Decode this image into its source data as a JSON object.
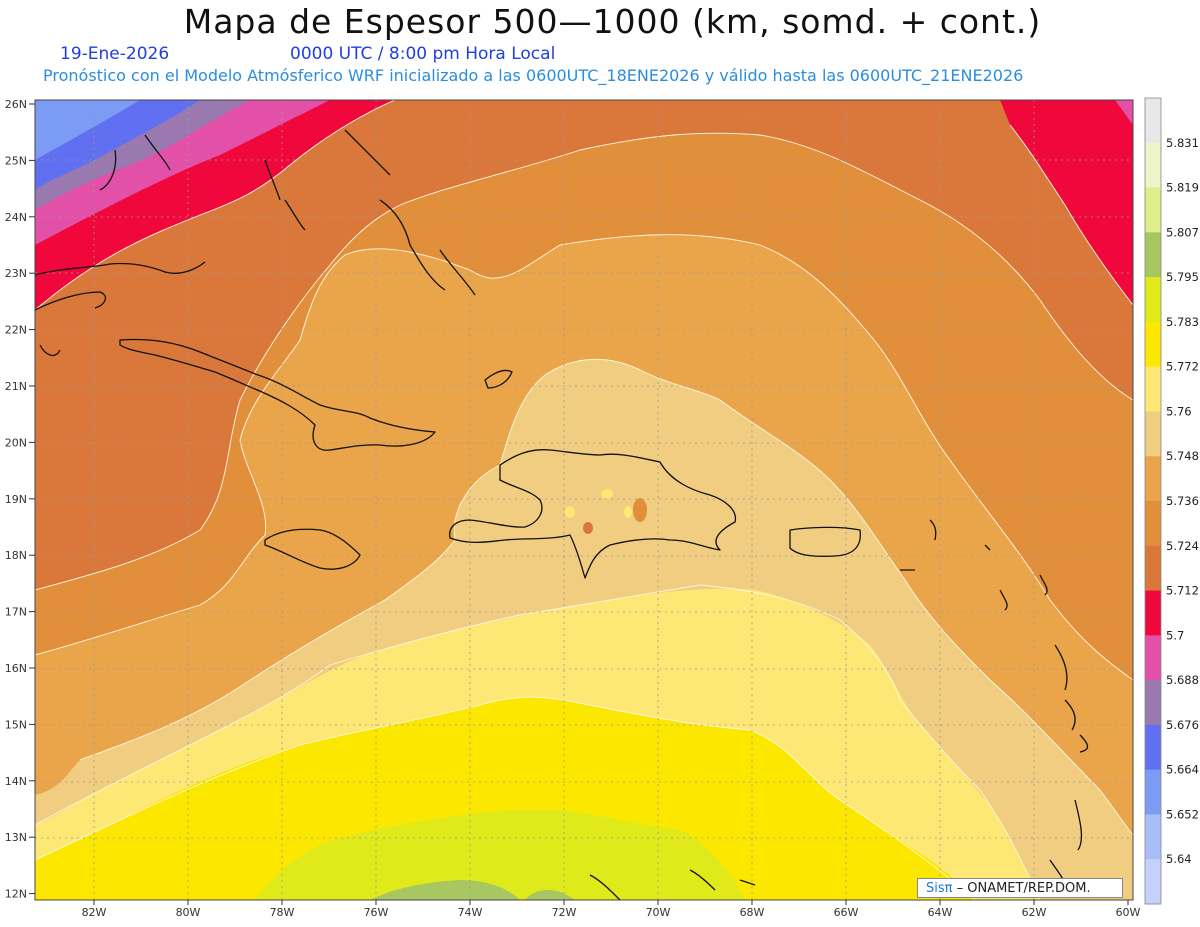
{
  "title": "Mapa de Espesor 500—1000 (km, somd. + cont.)",
  "date": "19-Ene-2026",
  "time_label": "0000 UTC / 8:00 pm Hora Local",
  "subtitle": "Pronóstico con el Modelo Atmósferico WRF inicializado a las 0600UTC_18ENE2026 y válido hasta las  0600UTC_21ENE2026",
  "credit": {
    "brand": "Sisπ",
    "text": "– ONAMET/REP.DOM."
  },
  "lat_labels": [
    "26N",
    "25N",
    "24N",
    "23N",
    "22N",
    "21N",
    "20N",
    "19N",
    "18N",
    "17N",
    "16N",
    "15N",
    "14N",
    "13N",
    "12N"
  ],
  "lon_labels": [
    "82W",
    "80W",
    "78W",
    "76W",
    "74W",
    "72W",
    "70W",
    "68W",
    "66W",
    "64W",
    "62W",
    "60W"
  ],
  "colorbar_labels": [
    "5.831",
    "5.819",
    "5.807",
    "5.795",
    "5.783",
    "5.772",
    "5.76",
    "5.748",
    "5.736",
    "5.724",
    "5.712",
    "5.7",
    "5.688",
    "5.676",
    "5.664",
    "5.652",
    "5.64"
  ],
  "colors": {
    "c5640": "#c4d2fb",
    "c5652": "#a9bdf8",
    "c5664": "#7b9bf5",
    "c5676": "#6070f0",
    "c5688": "#9a78b0",
    "c5700": "#e250a8",
    "c5712": "#f0083c",
    "c5724": "#d9783a",
    "c5736": "#e28f3c",
    "c5748": "#eaa44a",
    "c5760": "#f0cd80",
    "c5772": "#fde876",
    "c5783": "#fbe700",
    "c5795": "#e0ea1a",
    "c5807": "#a8c760",
    "c5819": "#dcef8a",
    "c5831": "#eef4c8",
    "top": "#e8e8e8",
    "contour": "#fff7e0",
    "coast": "#111111",
    "grid": "#9a9a9a"
  }
}
